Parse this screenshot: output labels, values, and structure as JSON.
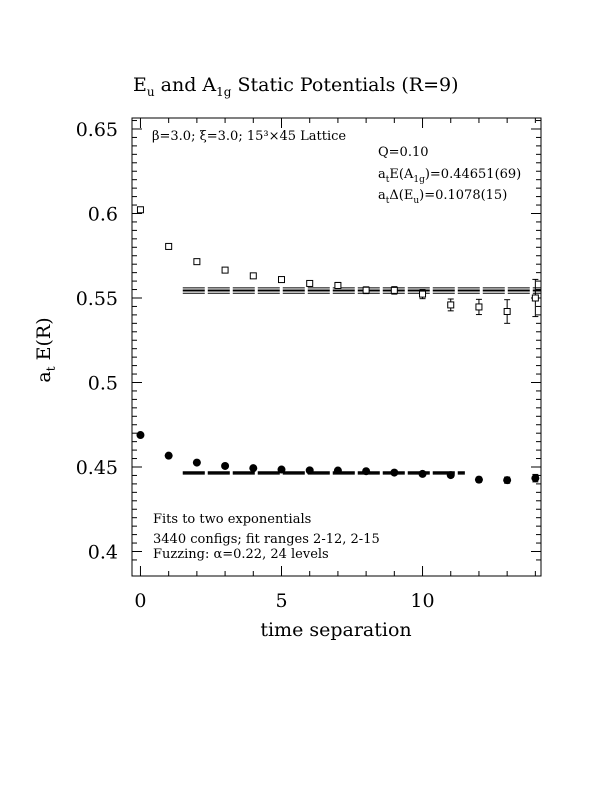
{
  "chart_data": {
    "type": "scatter",
    "title": {
      "main1": "E",
      "sub1": "u",
      "mid": " and A",
      "sub2": "1g",
      "end": " Static Potentials (R=9)"
    },
    "xlabel": "time separation",
    "ylabel": {
      "main": "a",
      "sub": "t",
      "rest": " E(R)"
    },
    "xlim": [
      -0.3,
      14.2
    ],
    "ylim": [
      0.3855,
      0.6565
    ],
    "xticks": [
      0,
      5,
      10
    ],
    "xtick_labels": [
      "0",
      "5",
      "10"
    ],
    "yticks": [
      0.4,
      0.45,
      0.5,
      0.55,
      0.6,
      0.65
    ],
    "ytick_labels": [
      "0.4",
      "0.45",
      "0.5",
      "0.55",
      "0.6",
      "0.65"
    ],
    "annotations": {
      "lattice": "β=3.0; ξ=3.0; 15³×45 Lattice",
      "q": "Q=0.10",
      "energy": {
        "a": "a",
        "asub": "t",
        "pre": "E(A",
        "sub": "1g",
        "post": ")=0.44651(69)"
      },
      "gap": {
        "a": "a",
        "asub": "t",
        "pre": "Δ(E",
        "sub": "u",
        "post": ")=0.1078(15)"
      },
      "fits": "Fits to two exponentials",
      "configs": "3440 configs; fit ranges 2-12, 2-15",
      "fuzzing": "Fuzzing: α=0.22, 24 levels"
    },
    "series": [
      {
        "marker": "open-square",
        "x": [
          0,
          1,
          2,
          3,
          4,
          5,
          6,
          7,
          8,
          9,
          10,
          11,
          12,
          13,
          14
        ],
        "y": [
          0.6022,
          0.5805,
          0.5715,
          0.5665,
          0.5631,
          0.5609,
          0.5586,
          0.5574,
          0.5546,
          0.5545,
          0.5523,
          0.5459,
          0.5447,
          0.542,
          0.55
        ],
        "err": [
          0.0008,
          0.0009,
          0.001,
          0.0012,
          0.0013,
          0.0014,
          0.0016,
          0.0018,
          0.002,
          0.0022,
          0.0027,
          0.0035,
          0.0045,
          0.007,
          0.011
        ]
      },
      {
        "marker": "filled-circle",
        "x": [
          0,
          1,
          2,
          3,
          4,
          5,
          6,
          7,
          8,
          9,
          10,
          11,
          12,
          13,
          14
        ],
        "y": [
          0.4689,
          0.4567,
          0.4526,
          0.4506,
          0.4493,
          0.4485,
          0.448,
          0.4479,
          0.4475,
          0.4467,
          0.4459,
          0.4452,
          0.4425,
          0.4422,
          0.4434
        ],
        "err": [
          0.0003,
          0.0003,
          0.0004,
          0.0005,
          0.0005,
          0.0006,
          0.0007,
          0.0008,
          0.0009,
          0.001,
          0.0012,
          0.0013,
          0.0015,
          0.0018,
          0.0022
        ]
      }
    ],
    "fit_lines": [
      {
        "x_from": 1.5,
        "x_to": 14.2,
        "y": 0.5544,
        "band": 0.0016
      },
      {
        "x_from": 1.5,
        "x_to": 11.5,
        "y": 0.44651,
        "band": 0.0007
      }
    ]
  }
}
